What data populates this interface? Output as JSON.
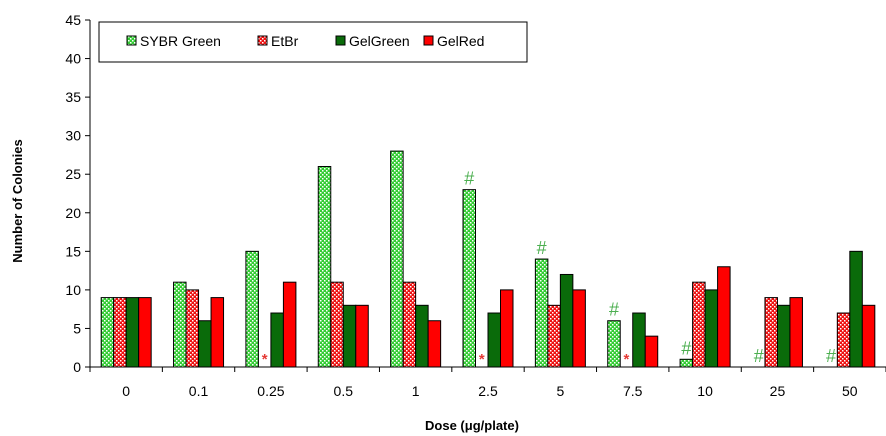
{
  "chart_data": {
    "type": "bar",
    "title": "",
    "xlabel": "Dose (μg/plate)",
    "ylabel": "Number of Colonies",
    "ylim": [
      0,
      45
    ],
    "yticks": [
      0,
      5,
      10,
      15,
      20,
      25,
      30,
      35,
      40,
      45
    ],
    "grid": false,
    "legend_position": "top-left",
    "categories": [
      "0",
      "0.1",
      "0.25",
      "0.5",
      "1",
      "2.5",
      "5",
      "7.5",
      "10",
      "25",
      "50"
    ],
    "series": [
      {
        "name": "SYBR Green",
        "color": "#33cc33",
        "pattern": "dotted-green",
        "values": [
          9,
          11,
          15,
          26,
          28,
          23,
          14,
          6,
          1,
          0,
          0
        ]
      },
      {
        "name": "EtBr",
        "color": "#ee1111",
        "pattern": "dotted-red",
        "values": [
          9,
          10,
          0,
          11,
          11,
          0,
          8,
          0,
          11,
          9,
          7
        ]
      },
      {
        "name": "GelGreen",
        "color": "#0a6b0a",
        "pattern": "solid",
        "values": [
          9,
          6,
          7,
          8,
          8,
          7,
          12,
          7,
          10,
          8,
          15
        ]
      },
      {
        "name": "GelRed",
        "color": "#ff0000",
        "pattern": "solid",
        "values": [
          9,
          9,
          11,
          8,
          6,
          10,
          10,
          4,
          13,
          9,
          8
        ]
      }
    ],
    "annotations": [
      {
        "text": "#",
        "series": 0,
        "category": "2.5",
        "color": "#4caf50"
      },
      {
        "text": "#",
        "series": 0,
        "category": "5",
        "color": "#4caf50"
      },
      {
        "text": "#",
        "series": 0,
        "category": "7.5",
        "color": "#4caf50"
      },
      {
        "text": "#",
        "series": 0,
        "category": "10",
        "color": "#4caf50"
      },
      {
        "text": "#",
        "series": 0,
        "category": "25",
        "color": "#4caf50"
      },
      {
        "text": "#",
        "series": 0,
        "category": "50",
        "color": "#4caf50"
      },
      {
        "text": "*",
        "series": 1,
        "category": "0.25",
        "color": "#e53935"
      },
      {
        "text": "*",
        "series": 1,
        "category": "2.5",
        "color": "#e53935"
      },
      {
        "text": "*",
        "series": 1,
        "category": "7.5",
        "color": "#e53935"
      }
    ]
  }
}
